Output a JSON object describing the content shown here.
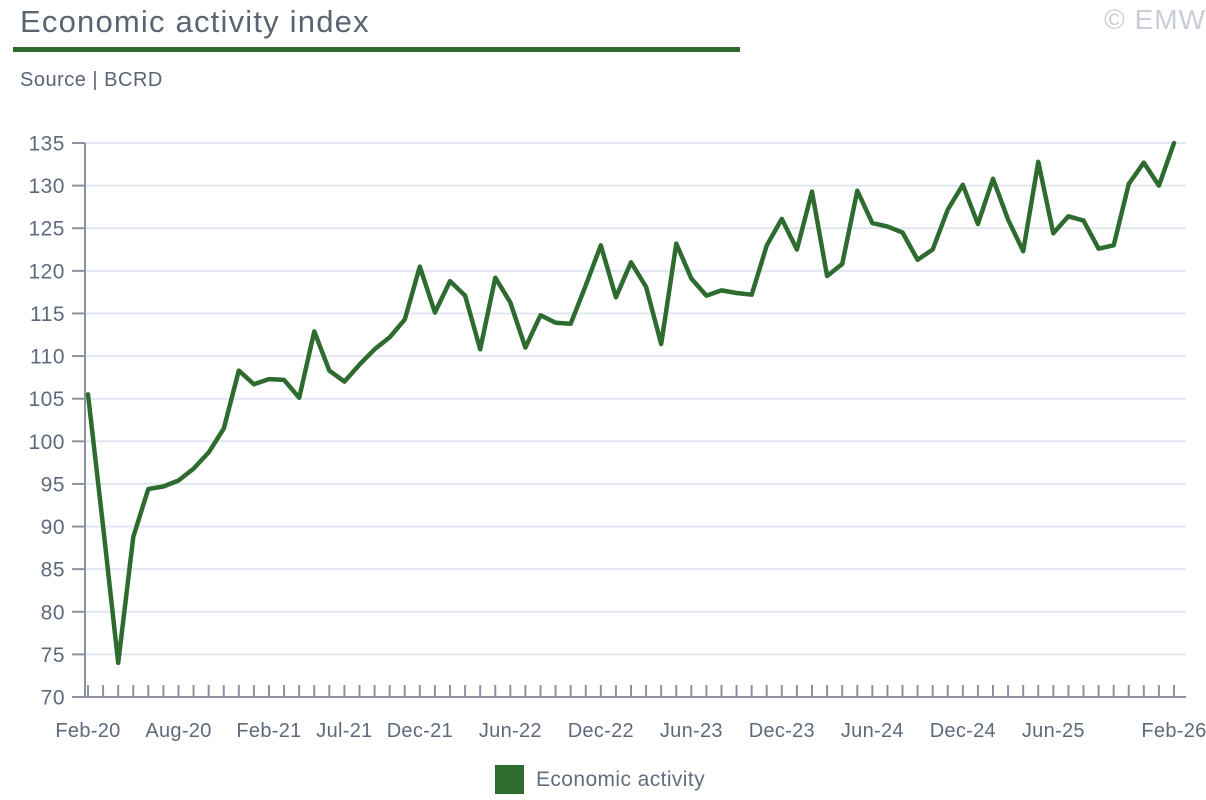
{
  "header": {
    "title": "Economic activity index",
    "source": "Source | BCRD",
    "copyright": "© EMW"
  },
  "legend": {
    "label": "Economic activity",
    "color": "#2e6b2e"
  },
  "chart_data": {
    "type": "line",
    "title": "Economic activity index",
    "series_name": "Economic activity",
    "x": [
      "Feb-20",
      "Mar-20",
      "Apr-20",
      "May-20",
      "Jun-20",
      "Jul-20",
      "Aug-20",
      "Sep-20",
      "Oct-20",
      "Nov-20",
      "Dec-20",
      "Jan-21",
      "Feb-21",
      "Mar-21",
      "Apr-21",
      "May-21",
      "Jun-21",
      "Jul-21",
      "Aug-21",
      "Sep-21",
      "Oct-21",
      "Nov-21",
      "Dec-21",
      "Jan-22",
      "Feb-22",
      "Mar-22",
      "Apr-22",
      "May-22",
      "Jun-22",
      "Jul-22",
      "Aug-22",
      "Sep-22",
      "Oct-22",
      "Nov-22",
      "Dec-22",
      "Jan-23",
      "Feb-23",
      "Mar-23",
      "Apr-23",
      "May-23",
      "Jun-23",
      "Jul-23",
      "Aug-23",
      "Sep-23",
      "Oct-23",
      "Nov-23",
      "Dec-23",
      "Jan-24",
      "Feb-24",
      "Mar-24",
      "Apr-24",
      "May-24",
      "Jun-24",
      "Jul-24",
      "Aug-24",
      "Sep-24",
      "Oct-24",
      "Nov-24",
      "Dec-24",
      "Jan-25",
      "Feb-25",
      "Mar-25",
      "Apr-25",
      "May-25",
      "Jun-25",
      "Jul-25",
      "Aug-25",
      "Sep-25",
      "Oct-25",
      "Nov-25",
      "Dec-25",
      "Jan-26",
      "Feb-26"
    ],
    "values": [
      105.5,
      90,
      74,
      88.8,
      94.4,
      94.7,
      95.4,
      96.8,
      98.7,
      101.5,
      108.3,
      106.7,
      107.3,
      107.2,
      105.1,
      112.9,
      108.3,
      107,
      109,
      110.8,
      112.2,
      114.3,
      120.5,
      115.1,
      118.8,
      117.1,
      110.8,
      119.2,
      116.3,
      111,
      114.8,
      113.9,
      113.8,
      118.3,
      123,
      116.9,
      121,
      118.1,
      111.4,
      123.2,
      119.1,
      117.1,
      117.7,
      117.4,
      117.2,
      123,
      126.1,
      122.5,
      129.3,
      119.4,
      120.8,
      129.4,
      125.6,
      125.2,
      124.5,
      121.3,
      122.5,
      127.2,
      130.1,
      125.5,
      130.8,
      126,
      122.3,
      132.8,
      124.4,
      126.4,
      125.9,
      122.6,
      123,
      130.2,
      132.7,
      130,
      135
    ],
    "x_ticks": [
      {
        "label": "Feb-20",
        "index": 0
      },
      {
        "label": "Aug-20",
        "index": 6
      },
      {
        "label": "Feb-21",
        "index": 12
      },
      {
        "label": "Jul-21",
        "index": 17
      },
      {
        "label": "Dec-21",
        "index": 22
      },
      {
        "label": "Jun-22",
        "index": 28
      },
      {
        "label": "Dec-22",
        "index": 34
      },
      {
        "label": "Jun-23",
        "index": 40
      },
      {
        "label": "Dec-23",
        "index": 46
      },
      {
        "label": "Jun-24",
        "index": 52
      },
      {
        "label": "Dec-24",
        "index": 58
      },
      {
        "label": "Jun-25",
        "index": 64
      },
      {
        "label": "Feb-26",
        "index": 72
      }
    ],
    "ylim": [
      70,
      135
    ],
    "ytick_step": 5,
    "grid": true,
    "legend_position": "bottom",
    "line_color": "#2d6c2e",
    "grid_color": "#e0e7f1",
    "axis_color": "#8a92a2"
  }
}
